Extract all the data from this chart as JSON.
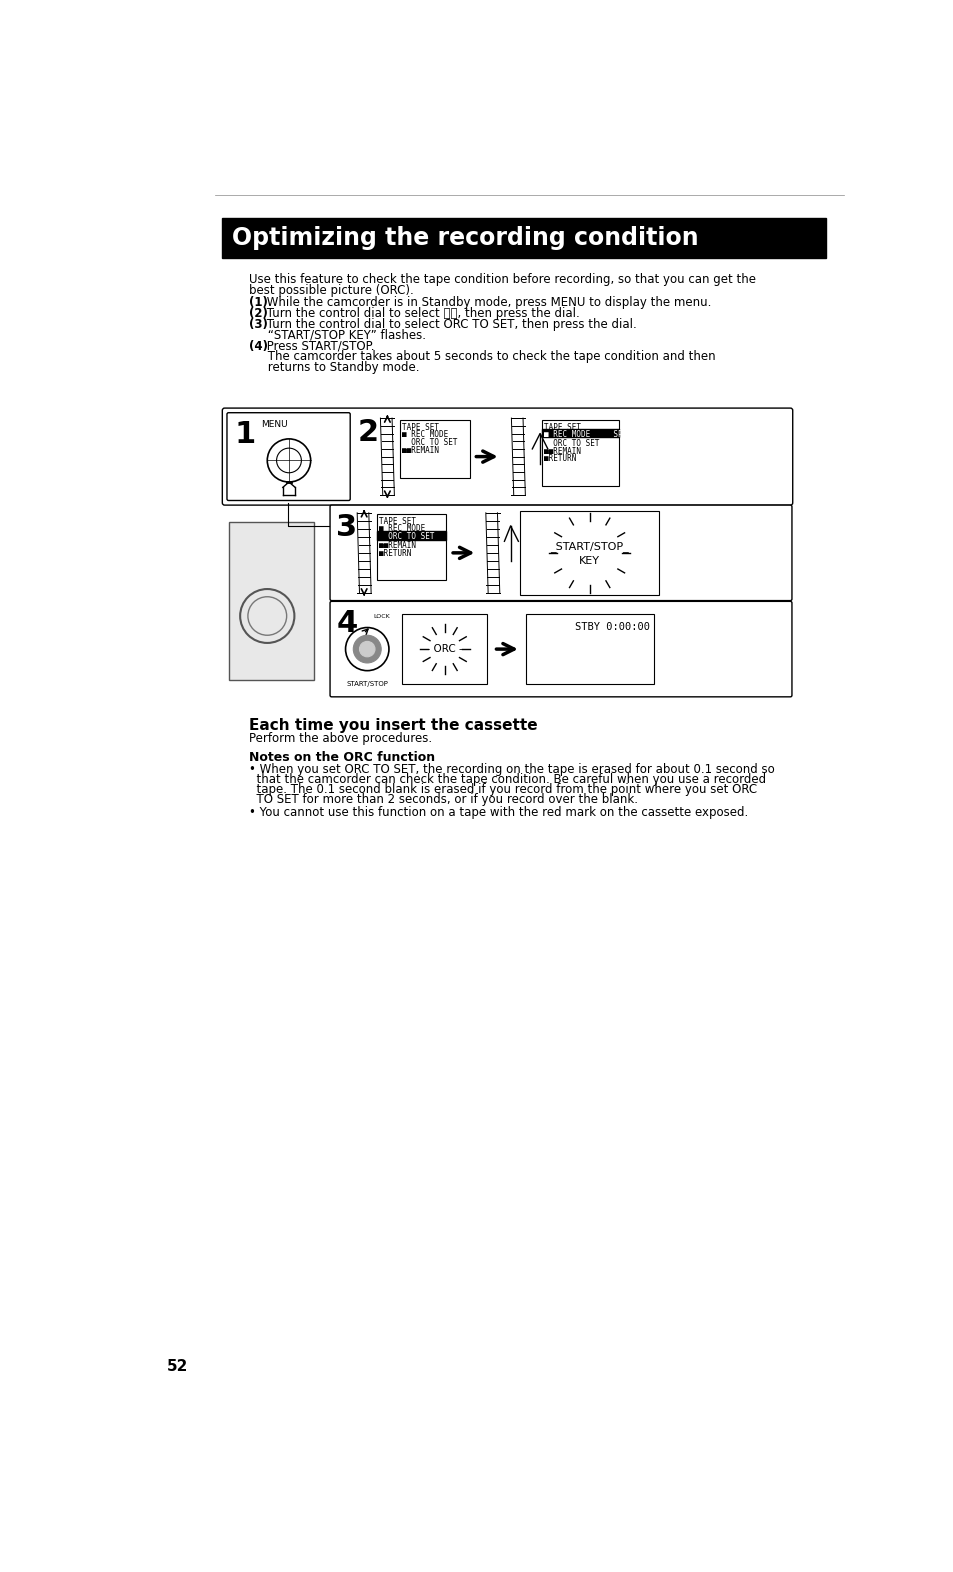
{
  "page_bg": "#ffffff",
  "header_bg": "#000000",
  "header_text": "Optimizing the recording condition",
  "header_text_color": "#ffffff",
  "body_text_color": "#000000",
  "intro_line1": "Use this feature to check the tape condition before recording, so that you can get the",
  "intro_line2": "best possible picture (ORC).",
  "step1_bold": "(1)",
  "step1_rest": " While the camcorder is in Standby mode, press MENU to display the menu.",
  "step2_bold": "(2)",
  "step2_rest": " Turn the control dial to select ⓡⓡ, then press the dial.",
  "step3_bold": "(3)",
  "step3_rest": " Turn the control dial to select ORC TO SET, then press the dial.",
  "step3b": "     “START/STOP KEY” flashes.",
  "step4_bold": "(4)",
  "step4_rest": " Press START/STOP.",
  "step4b": "     The camcorder takes about 5 seconds to check the tape condition and then",
  "step4c": "     returns to Standby mode.",
  "section2_title": "Each time you insert the cassette",
  "section2_body": "Perform the above procedures.",
  "section3_title": "Notes on the ORC function",
  "bullet1a": "• When you set ORC TO SET, the recording on the tape is erased for about 0.1 second so",
  "bullet1b": "  that the camcorder can check the tape condition. Be careful when you use a recorded",
  "bullet1c": "  tape. The 0.1 second blank is erased if you record from the point where you set ORC",
  "bullet1d": "  TO SET for more than 2 seconds, or if you record over the blank.",
  "bullet2": "• You cannot use this function on a tape with the red mark on the cassette exposed.",
  "page_number": "52"
}
